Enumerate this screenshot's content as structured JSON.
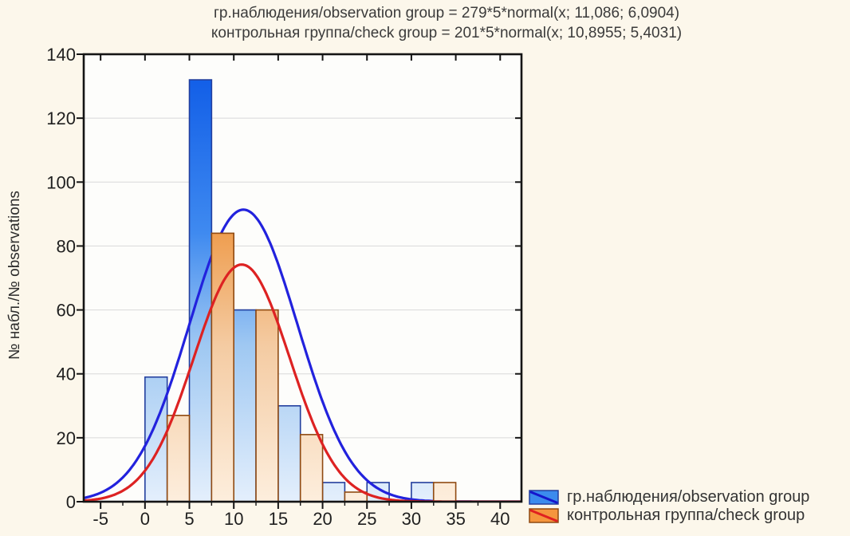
{
  "colors": {
    "page_bg": "#fcf7eb",
    "plot_bg": "#fdfdfb",
    "grid": "#d9d9d9",
    "frame": "#141414",
    "tick_text": "#1f1f1f",
    "title_text": "#3b3b3b",
    "obs_bar_border": "#233f9e",
    "obs_bar_top": "#0b58e6",
    "obs_bar_upper": "#3f8af0",
    "obs_bar_lower": "#9fc8f2",
    "obs_bar_bottom": "#e4effc",
    "check_bar_border": "#8f4a12",
    "check_bar_top": "#e46f15",
    "check_bar_upper": "#ef9e50",
    "check_bar_lower": "#f4cba2",
    "check_bar_bottom": "#fdeedd",
    "obs_curve": "#2222dd",
    "check_curve": "#dd2222",
    "legend_obs_fill": "#3b8bee",
    "legend_obs_line": "#1515cc",
    "legend_check_fill": "#f5953d",
    "legend_check_line": "#e02020"
  },
  "title": {
    "line1": "гр.наблюдения/observation group = 279*5*normal(x; 11,086; 6,0904)",
    "line2": "контрольная группа/check group = 201*5*normal(x; 10,8955; 5,4031)"
  },
  "y_axis": {
    "label": "№ набл./№ observations",
    "tick_values": [
      0,
      20,
      40,
      60,
      80,
      100,
      120,
      140
    ]
  },
  "x_axis": {
    "tick_values": [
      -5,
      0,
      5,
      10,
      15,
      20,
      25,
      30,
      35,
      40
    ],
    "minor_step": 2.5
  },
  "legend": {
    "items": [
      {
        "label": "гр.наблюдения/observation group",
        "fill_key": "legend_obs_fill",
        "line_key": "legend_obs_line",
        "border_key": "obs_bar_border"
      },
      {
        "label": "контрольная группа/check group",
        "fill_key": "legend_check_fill",
        "line_key": "legend_check_line",
        "border_key": "check_bar_border"
      }
    ]
  },
  "chart_data": {
    "type": "bar",
    "subtype": "grouped-histogram-with-normal-curves",
    "title": "гр.наблюдения/observation group = 279*5*normal(x; 11,086; 6,0904) | контрольная группа/check group = 201*5*normal(x; 10,8955; 5,4031)",
    "xlabel": "",
    "ylabel": "№ набл./№ observations",
    "bin_width": 5,
    "bin_starts": [
      0,
      5,
      10,
      15,
      20,
      25,
      30
    ],
    "series": [
      {
        "name": "гр.наблюдения/observation group",
        "values": [
          39,
          132,
          60,
          30,
          6,
          6,
          6
        ],
        "n": 279,
        "mean": 11.086,
        "sd": 6.0904,
        "bar_color_key": "obs",
        "curve_color_key": "obs_curve"
      },
      {
        "name": "контрольная группа/check group",
        "values": [
          27,
          84,
          60,
          21,
          3,
          0,
          6
        ],
        "n": 201,
        "mean": 10.8955,
        "sd": 5.4031,
        "bar_color_key": "check",
        "curve_color_key": "check_curve"
      }
    ],
    "curve_formula": "n * bin_width * normal(x; mean; sd)",
    "xlim": [
      -6.9,
      42.4
    ],
    "ylim": [
      0,
      140
    ],
    "grid": "horizontal",
    "legend_position": "bottom-right"
  }
}
